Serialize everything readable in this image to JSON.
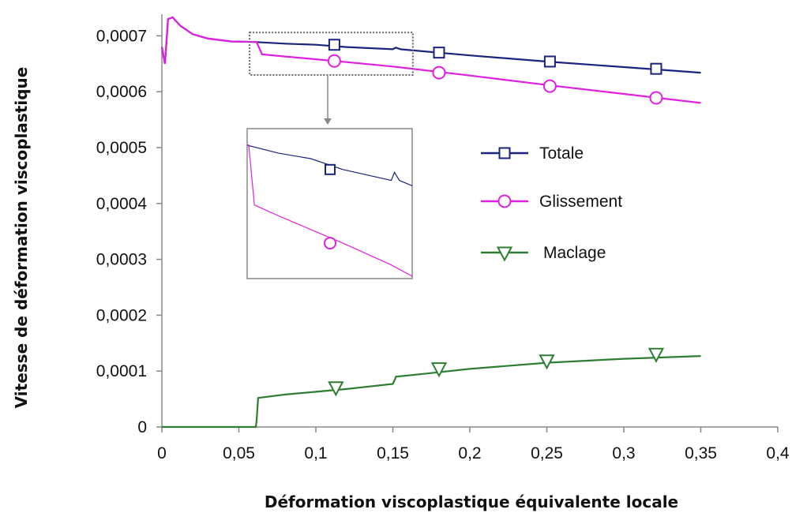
{
  "chart_data": {
    "type": "line",
    "title": "",
    "xlabel": "Déformation viscoplastique équivalente locale",
    "ylabel": "Vitesse de déformation viscoplastique",
    "xlim": [
      0,
      0.4
    ],
    "ylim": [
      0,
      0.00075
    ],
    "x_ticks": [
      "0",
      "0,05",
      "0,1",
      "0,15",
      "0,2",
      "0,25",
      "0,3",
      "0,35",
      "0,4"
    ],
    "y_ticks": [
      "0",
      "0,0001",
      "0,0002",
      "0,0003",
      "0,0004",
      "0,0005",
      "0,0006",
      "0,0007"
    ],
    "grid": false,
    "legend_position": "right, inside plot",
    "series": [
      {
        "name": "Totale",
        "color": "#1a237e",
        "marker": "square",
        "x": [
          0,
          0.002,
          0.004,
          0.007,
          0.012,
          0.02,
          0.03,
          0.045,
          0.06,
          0.08,
          0.1,
          0.12,
          0.15,
          0.152,
          0.155,
          0.2,
          0.25,
          0.3,
          0.35
        ],
        "y": [
          0.00068,
          0.00065,
          0.00073,
          0.000733,
          0.000718,
          0.000703,
          0.000695,
          0.00069,
          0.000689,
          0.000686,
          0.000684,
          0.00068,
          0.000676,
          0.000679,
          0.000676,
          0.000665,
          0.000654,
          0.000644,
          0.000634
        ],
        "marker_x": [
          0.112,
          0.18,
          0.252,
          0.321
        ],
        "marker_y": [
          0.000684,
          0.00067,
          0.000654,
          0.000641
        ]
      },
      {
        "name": "Glissement",
        "color": "#e020e0",
        "marker": "circle",
        "x": [
          0,
          0.002,
          0.004,
          0.007,
          0.012,
          0.02,
          0.03,
          0.045,
          0.06,
          0.0615,
          0.065,
          0.08,
          0.1,
          0.12,
          0.15,
          0.2,
          0.25,
          0.3,
          0.35
        ],
        "y": [
          0.00068,
          0.00065,
          0.00073,
          0.000733,
          0.000718,
          0.000703,
          0.000695,
          0.00069,
          0.000689,
          0.000689,
          0.000667,
          0.000663,
          0.000658,
          0.000653,
          0.000645,
          0.000629,
          0.000612,
          0.000596,
          0.00058
        ],
        "marker_x": [
          0.112,
          0.18,
          0.252,
          0.321
        ],
        "marker_y": [
          0.000655,
          0.000634,
          0.00061,
          0.000589
        ]
      },
      {
        "name": "Maclage",
        "color": "#2e7d32",
        "marker": "triangle-down",
        "x": [
          0,
          0.061,
          0.0615,
          0.0625,
          0.08,
          0.1,
          0.12,
          0.15,
          0.1515,
          0.152,
          0.17,
          0.2,
          0.25,
          0.3,
          0.35
        ],
        "y": [
          0,
          0,
          1e-05,
          5.2e-05,
          5.8e-05,
          6.3e-05,
          6.8e-05,
          7.7e-05,
          8.6e-05,
          9e-05,
          9.5e-05,
          0.000104,
          0.000115,
          0.000122,
          0.000127
        ],
        "marker_x": [
          0.113,
          0.18,
          0.25,
          0.321
        ],
        "marker_y": [
          7.1e-05,
          0.000105,
          0.000119,
          0.000131
        ]
      }
    ],
    "zoom_box": {
      "xlim": [
        0.057,
        0.163
      ],
      "ylim": [
        0.00063,
        0.000706
      ]
    }
  }
}
